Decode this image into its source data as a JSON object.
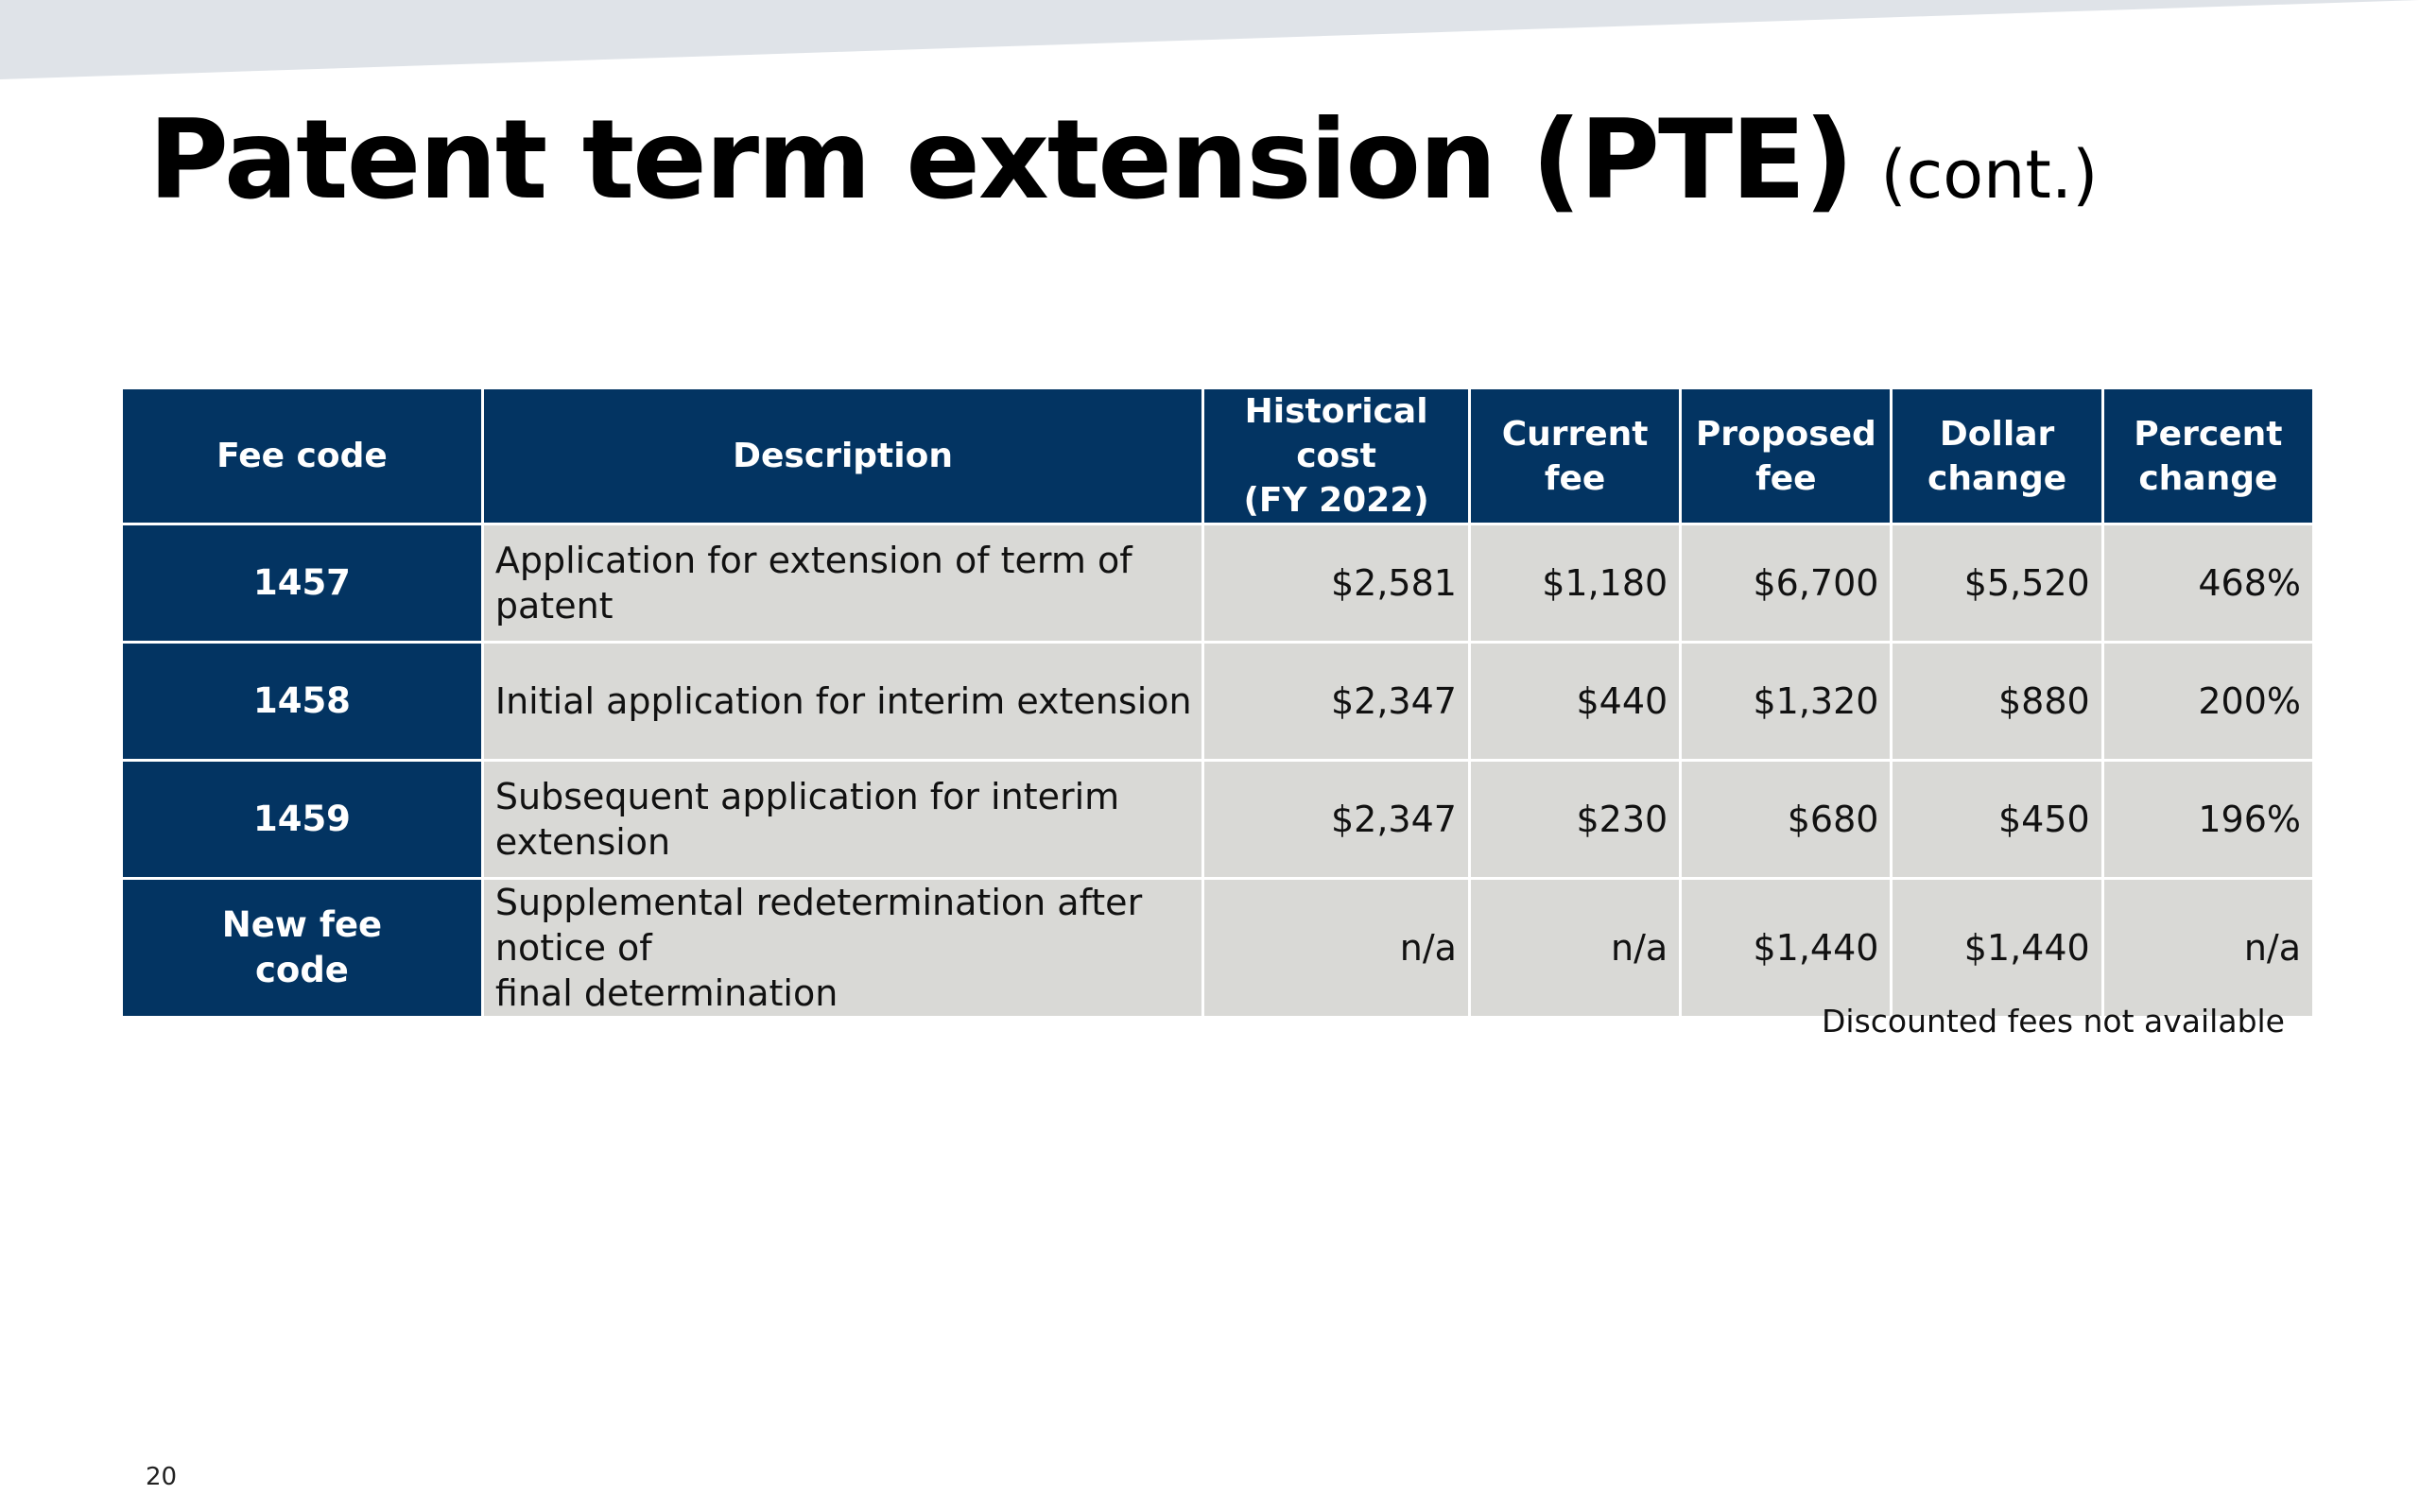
{
  "slide": {
    "title": "Patent term extension (PTE)",
    "subtitle": "(cont.)",
    "footnote": "Discounted fees not available",
    "page_number": "20",
    "colors": {
      "header_background": "#033462",
      "cell_background": "#d9d9d6",
      "top_band": "#dfe3e8"
    }
  },
  "table": {
    "headers": {
      "fee_code": "Fee code",
      "description": "Description",
      "historical_cost_1": "Historical cost",
      "historical_cost_2": "(FY 2022)",
      "current_fee_1": "Current",
      "current_fee_2": "fee",
      "proposed_fee_1": "Proposed",
      "proposed_fee_2": "fee",
      "dollar_change_1": "Dollar",
      "dollar_change_2": "change",
      "percent_change_1": "Percent",
      "percent_change_2": "change"
    },
    "rows": [
      {
        "code_1": "1457",
        "code_2": "",
        "description_1": "Application for extension of term of patent",
        "description_2": "",
        "historical_cost": "$2,581",
        "current_fee": "$1,180",
        "proposed_fee": "$6,700",
        "dollar_change": "$5,520",
        "percent_change": "468%"
      },
      {
        "code_1": "1458",
        "code_2": "",
        "description_1": "Initial application for interim extension",
        "description_2": "",
        "historical_cost": "$2,347",
        "current_fee": "$440",
        "proposed_fee": "$1,320",
        "dollar_change": "$880",
        "percent_change": "200%"
      },
      {
        "code_1": "1459",
        "code_2": "",
        "description_1": "Subsequent application for interim extension",
        "description_2": "",
        "historical_cost": "$2,347",
        "current_fee": "$230",
        "proposed_fee": "$680",
        "dollar_change": "$450",
        "percent_change": "196%"
      },
      {
        "code_1": "New fee",
        "code_2": "code",
        "description_1": "Supplemental redetermination after notice of",
        "description_2": "final determination",
        "historical_cost": "n/a",
        "current_fee": "n/a",
        "proposed_fee": "$1,440",
        "dollar_change": "$1,440",
        "percent_change": "n/a"
      }
    ]
  }
}
